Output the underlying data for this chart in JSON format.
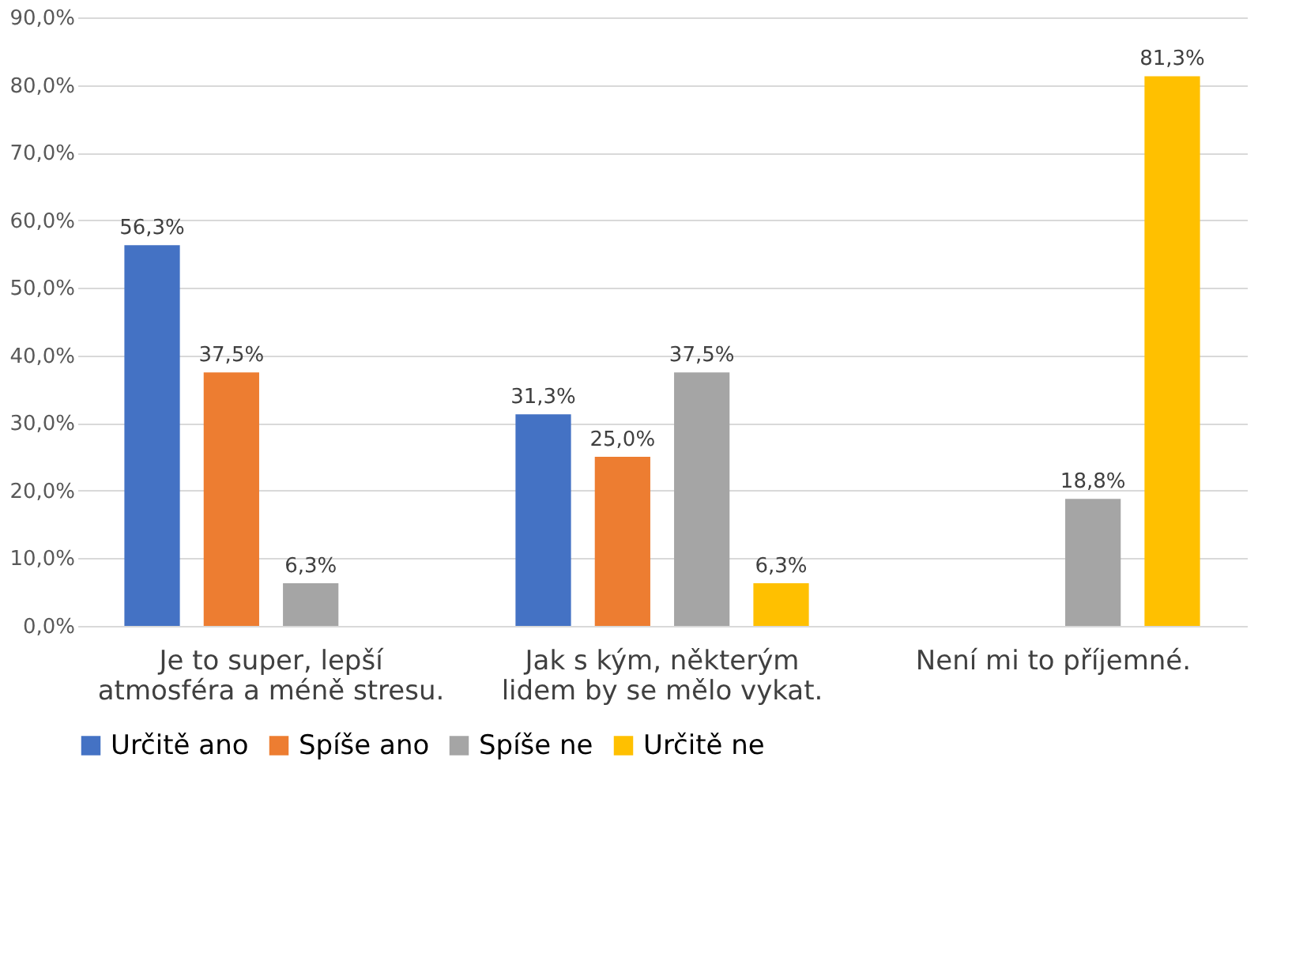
{
  "chart_data": {
    "type": "bar",
    "categories": [
      "Je to super, lepší atmosféra a méně stresu.",
      "Jak s kým, některým lidem by se mělo vykat.",
      "Není mi to příjemné."
    ],
    "series": [
      {
        "name": "Určitě ano",
        "color": "#4472c4",
        "values": [
          56.3,
          31.3,
          null
        ],
        "value_labels": [
          "56,3%",
          "31,3%",
          null
        ]
      },
      {
        "name": "Spíše ano",
        "color": "#ed7d31",
        "values": [
          37.5,
          25.0,
          null
        ],
        "value_labels": [
          "37,5%",
          "25,0%",
          null
        ]
      },
      {
        "name": "Spíše ne",
        "color": "#a5a5a5",
        "values": [
          6.3,
          37.5,
          18.8
        ],
        "value_labels": [
          "6,3%",
          "37,5%",
          "18,8%"
        ]
      },
      {
        "name": "Určitě ne",
        "color": "#ffc000",
        "values": [
          null,
          6.3,
          81.3
        ],
        "value_labels": [
          null,
          "6,3%",
          "81,3%"
        ]
      }
    ],
    "ylim": [
      0,
      90
    ],
    "yticks": [
      {
        "value": 0,
        "label": "0,0%"
      },
      {
        "value": 10,
        "label": "10,0%"
      },
      {
        "value": 20,
        "label": "20,0%"
      },
      {
        "value": 30,
        "label": "30,0%"
      },
      {
        "value": 40,
        "label": "40,0%"
      },
      {
        "value": 50,
        "label": "50,0%"
      },
      {
        "value": 60,
        "label": "60,0%"
      },
      {
        "value": 70,
        "label": "70,0%"
      },
      {
        "value": 80,
        "label": "80,0%"
      },
      {
        "value": 90,
        "label": "90,0%"
      }
    ],
    "grid": "y",
    "legend": "bottom"
  }
}
